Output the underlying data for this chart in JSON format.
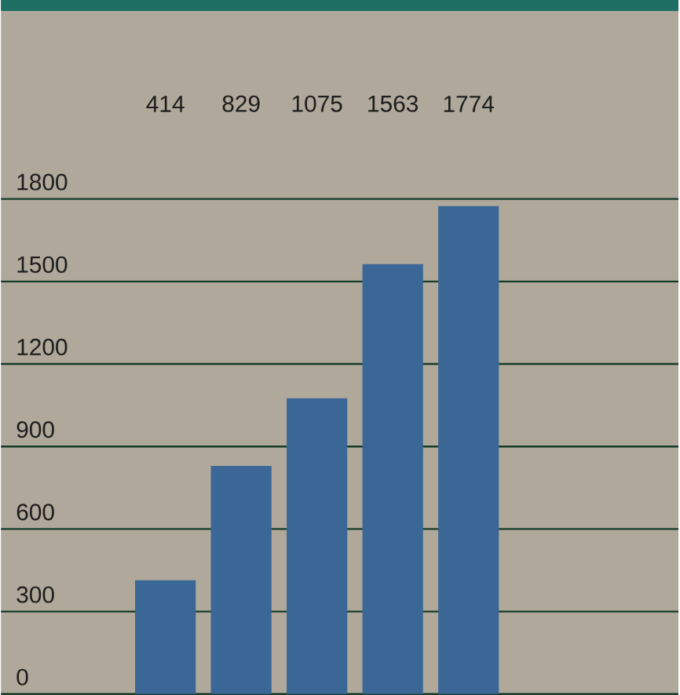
{
  "chart_data": {
    "type": "bar",
    "categories": [
      null,
      null,
      null,
      null,
      null
    ],
    "values": [
      414,
      829,
      1075,
      1563,
      1774
    ],
    "value_labels": [
      "414",
      "829",
      "1075",
      "1563",
      "1774"
    ],
    "color": "#3a6796",
    "ylim": [
      0,
      1800
    ],
    "yticks": [
      0,
      300,
      600,
      900,
      1200,
      1500,
      1800
    ],
    "grid": "y",
    "tick_labels": "y"
  }
}
